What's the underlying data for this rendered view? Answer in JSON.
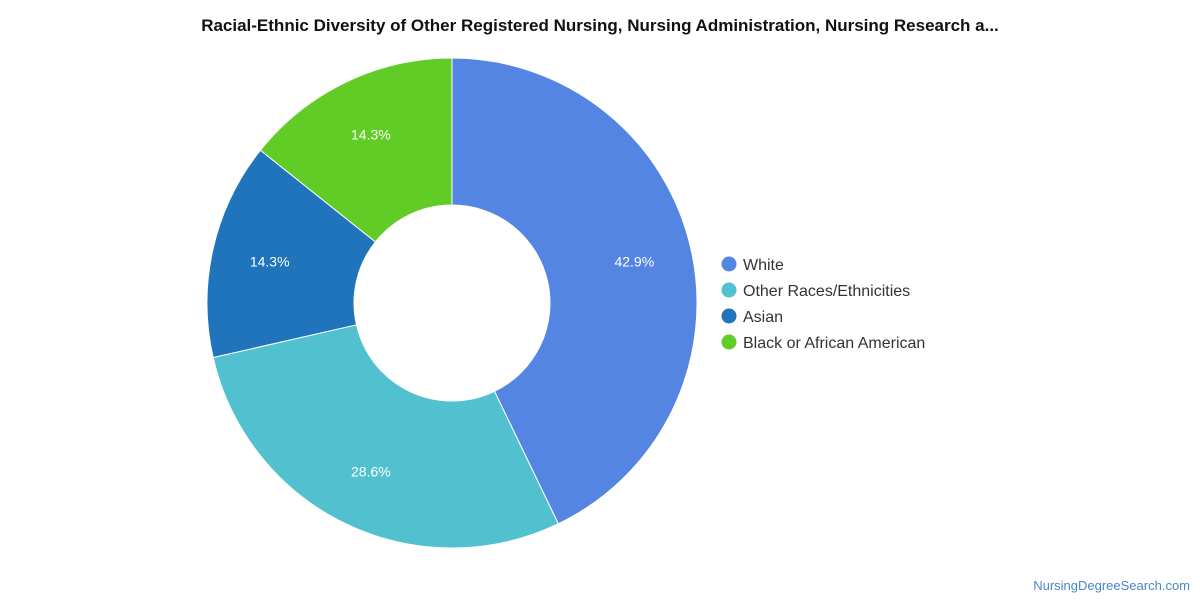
{
  "chart_data": {
    "type": "pie",
    "donut": true,
    "title": "Racial-Ethnic Diversity of Other Registered Nursing, Nursing Administration, Nursing Research a...",
    "series": [
      {
        "name": "White",
        "value": 42.9,
        "label": "42.9%",
        "color": "#5485e2"
      },
      {
        "name": "Other Races/Ethnicities",
        "value": 28.6,
        "label": "28.6%",
        "color": "#51c1cf"
      },
      {
        "name": "Asian",
        "value": 14.3,
        "label": "14.3%",
        "color": "#1f74bb"
      },
      {
        "name": "Black or African American",
        "value": 14.3,
        "label": "14.3%",
        "color": "#62cc27"
      }
    ],
    "start_angle": "12 o'clock",
    "direction": "clockwise",
    "legend_position": "right"
  },
  "watermark": "NursingDegreeSearch.com"
}
